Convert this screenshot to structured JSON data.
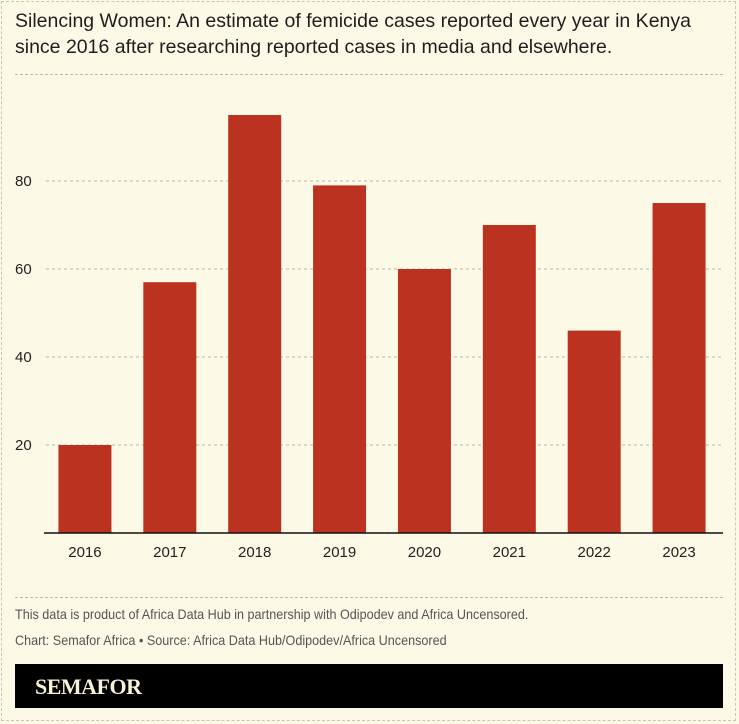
{
  "chart_data": {
    "type": "bar",
    "title": "Silencing Women: An estimate of femicide cases reported every year in Kenya since 2016 after researching reported cases in media and elsewhere.",
    "categories": [
      "2016",
      "2017",
      "2018",
      "2019",
      "2020",
      "2021",
      "2022",
      "2023"
    ],
    "values": [
      20,
      57,
      95,
      79,
      60,
      70,
      46,
      75
    ],
    "yticks": [
      20,
      40,
      60,
      80
    ],
    "ylim": [
      0,
      100
    ],
    "xlabel": "",
    "ylabel": "",
    "grid": true,
    "bar_color": "#bc3220"
  },
  "footer": {
    "note": "This data is product of Africa Data Hub in partnership with Odipodev and Africa Uncensored.",
    "credit": "Chart: Semafor Africa • Source: Africa Data Hub/Odipodev/Africa Uncensored",
    "brand": "SEMAFOR"
  }
}
